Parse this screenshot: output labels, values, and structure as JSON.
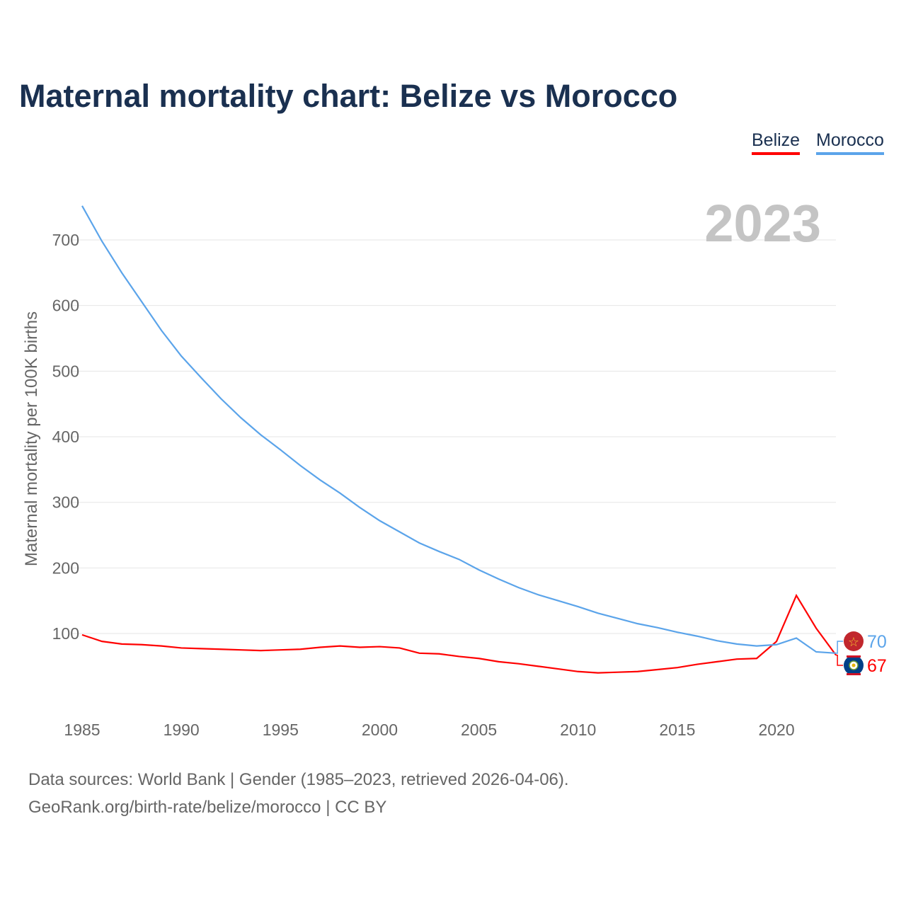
{
  "title": "Maternal mortality chart: Belize vs Morocco",
  "footer": {
    "line1": "Data sources: World Bank | Gender (1985–2023, retrieved 2026-04-06).",
    "line2": "GeoRank.org/birth-rate/belize/morocco | CC BY"
  },
  "chart_data": {
    "type": "line",
    "title": "Maternal mortality chart: Belize vs Morocco",
    "ylabel": "Maternal mortality per 100K births",
    "xlabel": "",
    "year_label": "2023",
    "xlim": [
      1985,
      2023
    ],
    "ylim": [
      0,
      760
    ],
    "xticks": [
      1985,
      1990,
      1995,
      2000,
      2005,
      2010,
      2015,
      2020
    ],
    "yticks": [
      100,
      200,
      300,
      400,
      500,
      600,
      700
    ],
    "grid": true,
    "legend": "top-right",
    "x": [
      1985,
      1986,
      1987,
      1988,
      1989,
      1990,
      1991,
      1992,
      1993,
      1994,
      1995,
      1996,
      1997,
      1998,
      1999,
      2000,
      2001,
      2002,
      2003,
      2004,
      2005,
      2006,
      2007,
      2008,
      2009,
      2010,
      2011,
      2012,
      2013,
      2014,
      2015,
      2016,
      2017,
      2018,
      2019,
      2020,
      2021,
      2022,
      2023
    ],
    "series": [
      {
        "name": "Belize",
        "color": "#ff0000",
        "end_label": "67",
        "flag": "belize-flag",
        "values": [
          98,
          88,
          84,
          83,
          81,
          78,
          77,
          76,
          75,
          74,
          75,
          76,
          79,
          81,
          79,
          80,
          78,
          70,
          69,
          65,
          62,
          57,
          54,
          50,
          46,
          42,
          40,
          41,
          42,
          45,
          48,
          53,
          57,
          61,
          62,
          88,
          158,
          108,
          67
        ]
      },
      {
        "name": "Morocco",
        "color": "#5ba4ea",
        "end_label": "70",
        "flag": "morocco-flag",
        "values": [
          752,
          698,
          650,
          606,
          562,
          523,
          490,
          458,
          429,
          403,
          380,
          356,
          334,
          314,
          292,
          272,
          255,
          238,
          225,
          213,
          197,
          183,
          170,
          159,
          150,
          141,
          131,
          123,
          115,
          109,
          102,
          96,
          89,
          84,
          81,
          83,
          93,
          72,
          70
        ]
      }
    ]
  }
}
